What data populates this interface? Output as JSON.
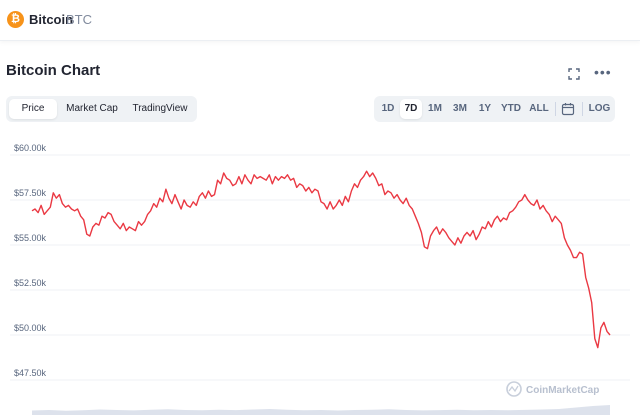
{
  "header": {
    "coin_logo_glyph": "₿",
    "coin_name": "Bitcoin",
    "coin_symbol": "BTC",
    "brand_color": "#f7931a"
  },
  "section": {
    "title": "Bitcoin Chart",
    "fullscreen_icon": "fullscreen-icon",
    "more_icon": "more-icon",
    "more_glyph": "•••"
  },
  "view_tabs": [
    {
      "label": "Price",
      "active": true
    },
    {
      "label": "Market Cap",
      "active": false
    },
    {
      "label": "TradingView",
      "active": false
    }
  ],
  "range_tabs": [
    {
      "label": "1D",
      "active": false
    },
    {
      "label": "7D",
      "active": true
    },
    {
      "label": "1M",
      "active": false
    },
    {
      "label": "3M",
      "active": false
    },
    {
      "label": "1Y",
      "active": false
    },
    {
      "label": "YTD",
      "active": false
    },
    {
      "label": "ALL",
      "active": false
    }
  ],
  "range_extra": {
    "calendar_icon": "calendar-icon",
    "log_label": "LOG"
  },
  "watermark": "CoinMarketCap",
  "colors": {
    "line": "#ea3943",
    "grid": "#eff2f5",
    "volume": "#cfd6e4"
  },
  "chart_data": {
    "type": "line",
    "title": "",
    "xlabel": "",
    "ylabel": "",
    "yticks": [
      "$60.00k",
      "$57.50k",
      "$55.00k",
      "$52.50k",
      "$50.00k",
      "$47.50k"
    ],
    "ytick_values": [
      60000,
      57500,
      55000,
      52500,
      50000,
      47500
    ],
    "ylim": [
      47500,
      60500
    ],
    "grid": true,
    "series": [
      {
        "values": [
          56900,
          57000,
          56800,
          57200,
          56700,
          56900,
          57100,
          57900,
          57600,
          57800,
          57300,
          57100,
          57200,
          57000,
          56900,
          57000,
          56600,
          56400,
          55600,
          55500,
          56000,
          56200,
          56100,
          56600,
          56500,
          56800,
          56700,
          56300,
          56100,
          55900,
          56200,
          55800,
          56000,
          55900,
          55800,
          56300,
          56100,
          56300,
          56700,
          56900,
          57300,
          57100,
          57600,
          57400,
          58100,
          57600,
          57300,
          57800,
          57400,
          57000,
          57500,
          57200,
          57100,
          57400,
          57200,
          57700,
          57900,
          57600,
          58000,
          57700,
          57800,
          58600,
          58400,
          59000,
          58700,
          58600,
          58300,
          58400,
          58800,
          58400,
          58900,
          58600,
          58400,
          58900,
          58700,
          58800,
          58700,
          58600,
          58900,
          58400,
          58800,
          58600,
          58800,
          58700,
          58900,
          58600,
          58700,
          58200,
          58400,
          58300,
          58000,
          58200,
          57900,
          58100,
          58000,
          57400,
          57300,
          57000,
          57400,
          57000,
          57200,
          57500,
          57200,
          57700,
          57400,
          58000,
          58400,
          58200,
          58600,
          58800,
          59100,
          58800,
          59000,
          58700,
          58300,
          58400,
          57800,
          58000,
          57900,
          57600,
          57800,
          57500,
          57300,
          57600,
          57200,
          57000,
          56600,
          56200,
          55700,
          54900,
          54800,
          55500,
          55800,
          56000,
          55600,
          55900,
          55700,
          55400,
          55200,
          55000,
          55400,
          55100,
          55500,
          55700,
          55500,
          55800,
          55300,
          55600,
          56000,
          55900,
          56300,
          56000,
          56400,
          56600,
          56300,
          56500,
          56400,
          56800,
          56900,
          57100,
          57400,
          57500,
          57800,
          57500,
          57300,
          57200,
          57500,
          57000,
          57200,
          56900,
          56700,
          56300,
          56600,
          56400,
          56200,
          55400,
          55000,
          54700,
          54300,
          54300,
          54600,
          54500,
          53200,
          52600,
          51800,
          49800,
          49300,
          50400,
          50700,
          50200,
          50000
        ]
      }
    ],
    "x_count": 200,
    "volume_profile": [
      0.45,
      0.5,
      0.42,
      0.48,
      0.55,
      0.5,
      0.46,
      0.52,
      0.58,
      0.5,
      0.47,
      0.53,
      0.49,
      0.55,
      0.6,
      0.52,
      0.48,
      0.5,
      0.45,
      0.5,
      0.53,
      0.57,
      0.5,
      0.46,
      0.49,
      0.52,
      0.48,
      0.5,
      0.47,
      0.51,
      0.55,
      0.6,
      0.75,
      0.9,
      1.0
    ]
  }
}
